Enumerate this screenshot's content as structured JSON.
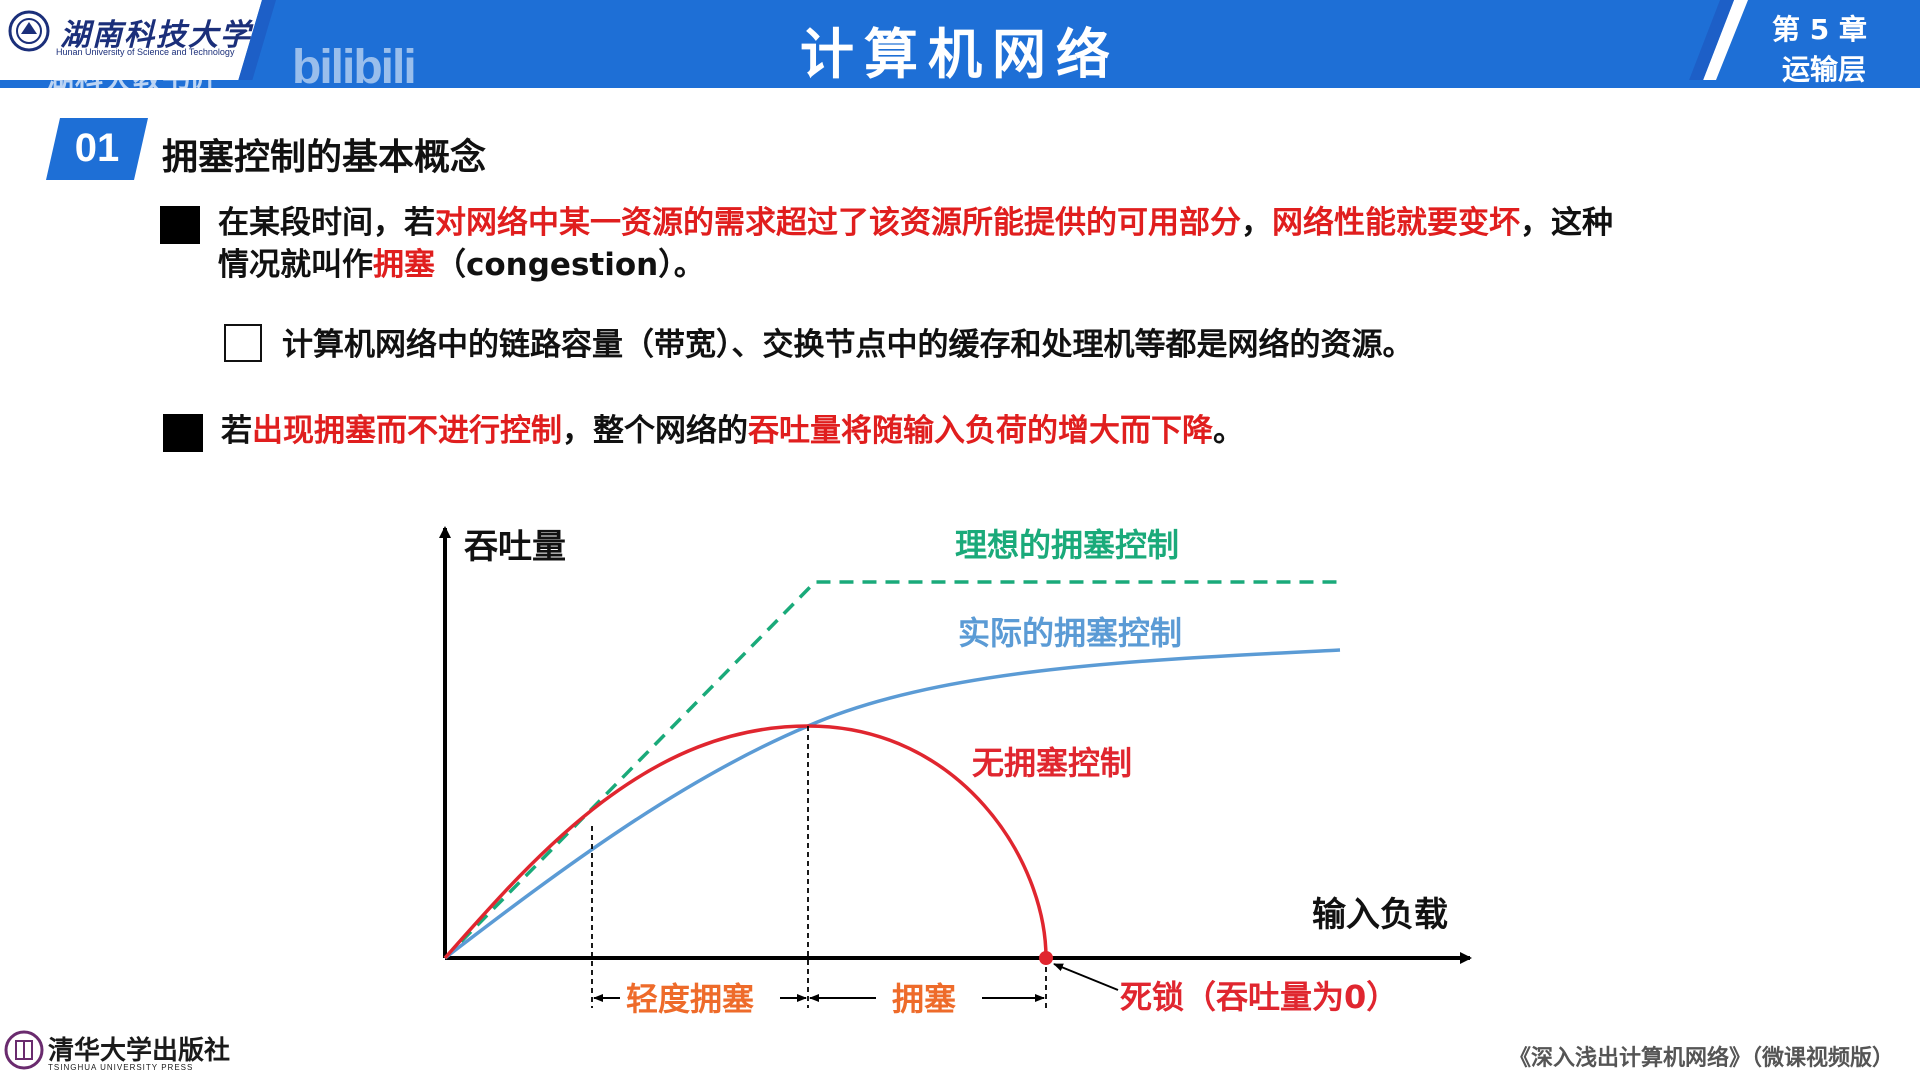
{
  "header": {
    "university_cn": "湖南科技大学",
    "university_en": "Hunan University of Science and Technology",
    "channel_watermark": "湖科大教书匠",
    "bilibili_watermark": "bilibili",
    "course_title": "计算机网络",
    "chapter_number": "第 5 章",
    "chapter_name": "运输层",
    "colors": {
      "bar_blue": "#1e6fd6",
      "accent_blue": "#1d5fc7"
    }
  },
  "section": {
    "number": "01",
    "title": "拥塞控制的基本概念"
  },
  "bullets": {
    "b1": {
      "t1": "在某段时间，若",
      "t2": "对网络中某一资源的需求超过了该资源所能提供的可用部分",
      "t3": "，",
      "t4": "网络性能就要变坏",
      "t5": "，这种",
      "t6": "情况就叫作",
      "t7": "拥塞",
      "t8": "（congestion）。"
    },
    "sub1": "计算机网络中的链路容量（带宽）、交换节点中的缓存和处理机等都是网络的资源。",
    "b2": {
      "t1": "若",
      "t2": "出现拥塞而不进行控制",
      "t3": "，整个网络的",
      "t4": "吞吐量将随输入负荷的增大而下降",
      "t5": "。"
    }
  },
  "chart_data": {
    "type": "line",
    "ylabel": "吞吐量",
    "xlabel": "输入负载",
    "series": [
      {
        "name": "理想的拥塞控制",
        "color": "#1aaa7a",
        "style": "dashed"
      },
      {
        "name": "实际的拥塞控制",
        "color": "#5b9bd5",
        "style": "solid"
      },
      {
        "name": "无拥塞控制",
        "color": "#e0262f",
        "style": "solid"
      }
    ],
    "regions": [
      "轻度拥塞",
      "拥塞"
    ],
    "annotation": "死锁（吞吐量为0）",
    "region_color": "#ee6b2a"
  },
  "footer": {
    "press_cn": "清华大学出版社",
    "press_en": "TSINGHUA UNIVERSITY PRESS",
    "book_title": "《深入浅出计算机网络》（微课视频版）"
  }
}
